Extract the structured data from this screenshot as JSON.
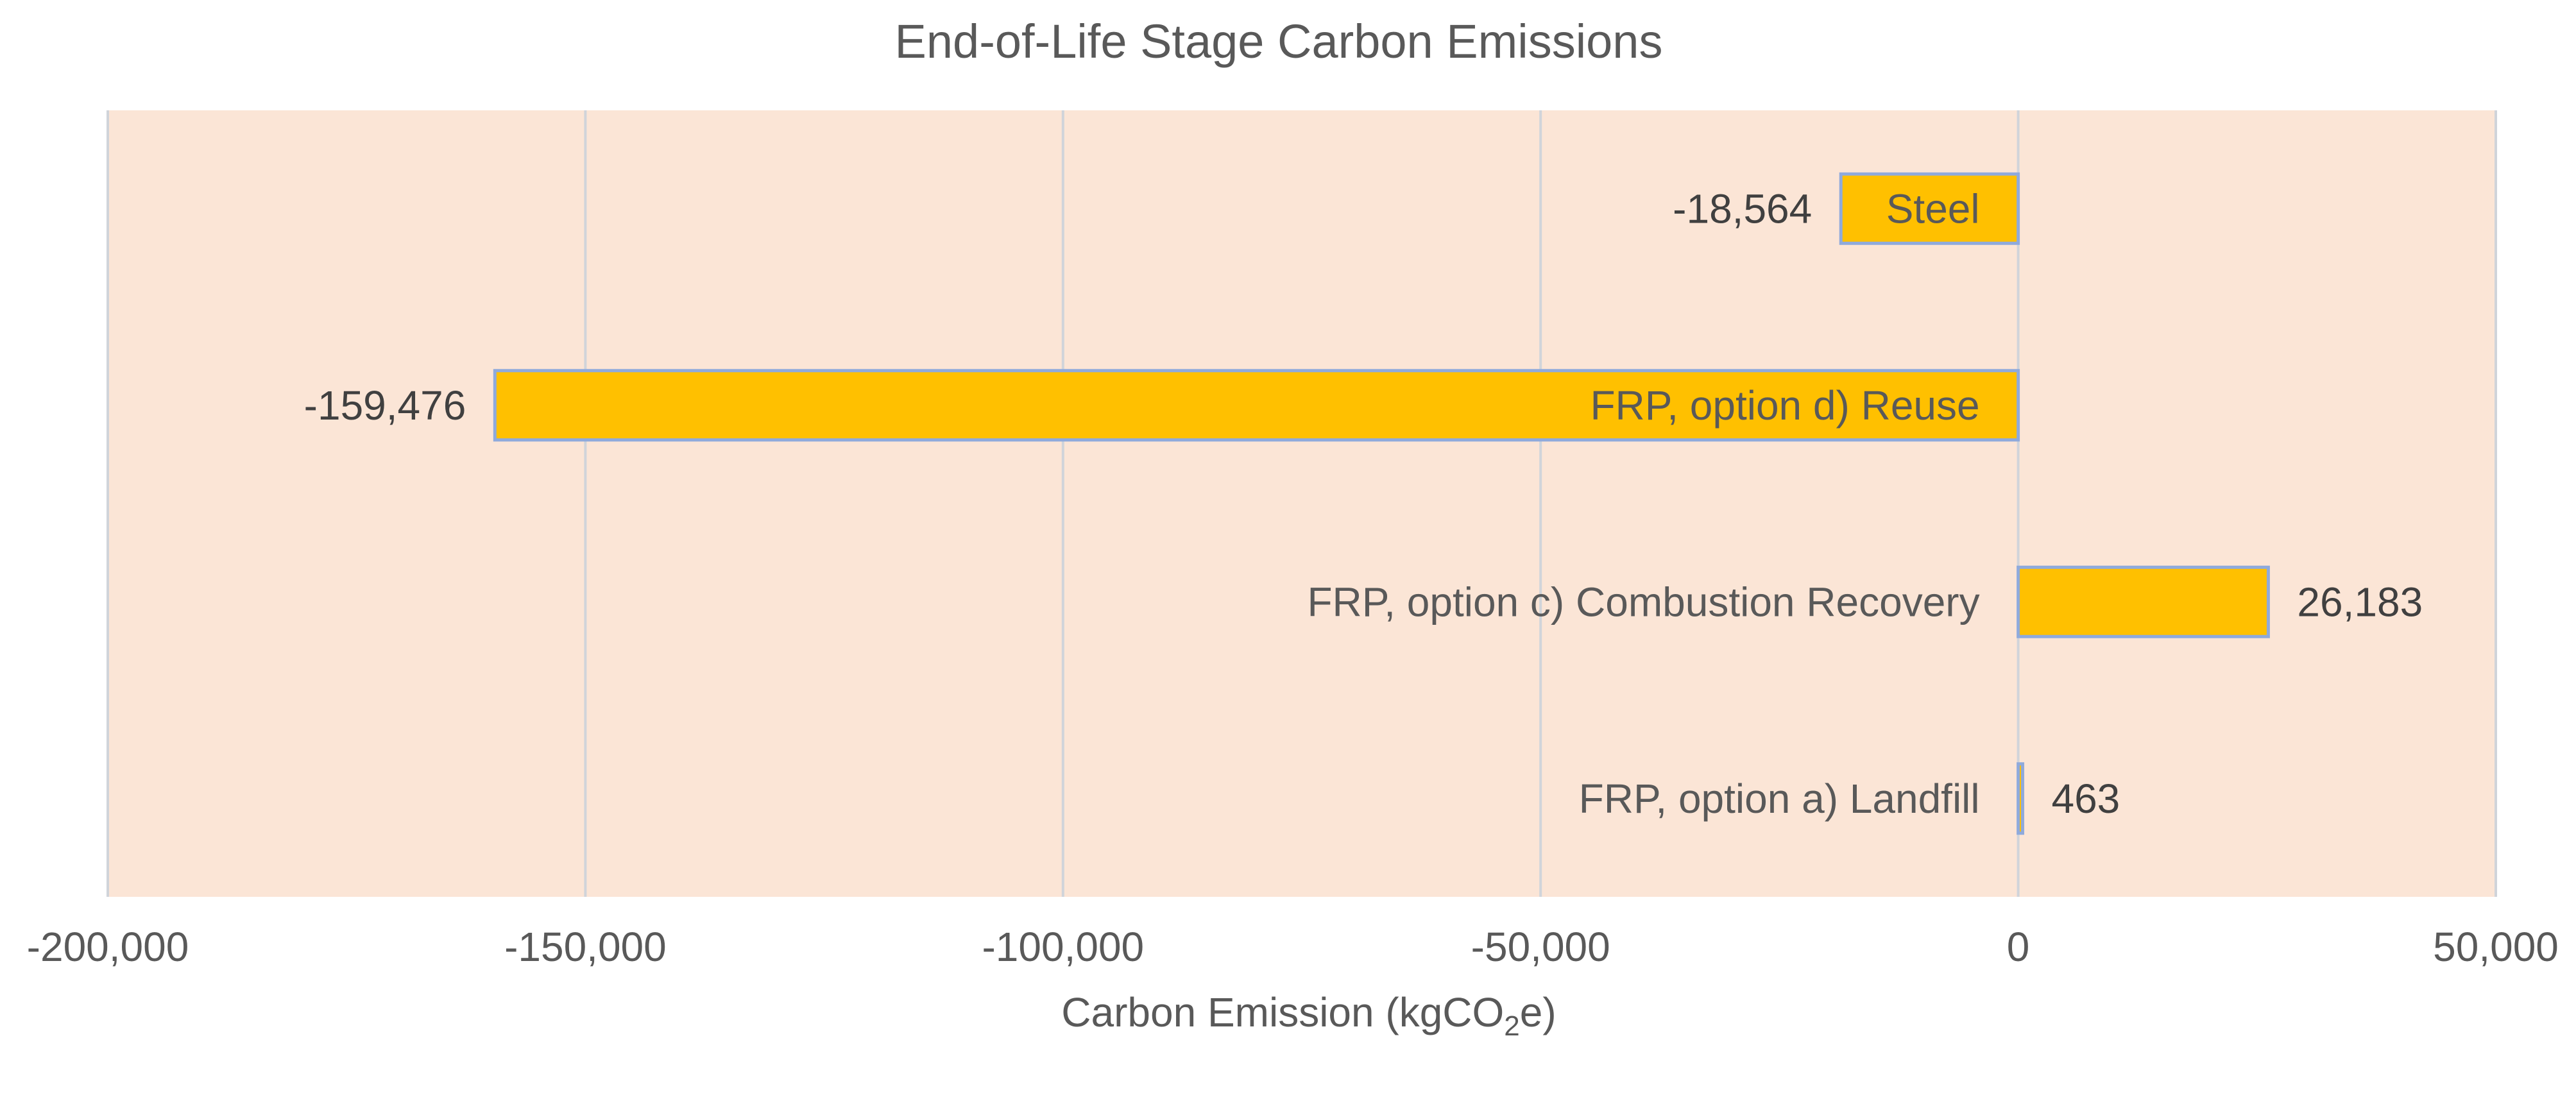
{
  "chart_data": {
    "type": "bar",
    "orientation": "horizontal",
    "title": "End-of-Life Stage Carbon Emissions",
    "xlabel": "Carbon Emission (kgCO₂e)",
    "xlabel_parts": {
      "before": "Carbon Emission (kgCO",
      "sub": "2",
      "after": "e)"
    },
    "ylabel": "",
    "xlim": [
      -200000,
      50000
    ],
    "x_ticks": [
      -200000,
      -150000,
      -100000,
      -50000,
      0,
      50000
    ],
    "x_tick_labels": [
      "-200,000",
      "-150,000",
      "-100,000",
      "-50,000",
      "0",
      "50,000"
    ],
    "grid": true,
    "legend": "none",
    "categories": [
      "Steel",
      "FRP, option d) Reuse",
      "FRP, option c) Combustion Recovery",
      "FRP, option a) Landfill"
    ],
    "values": [
      -18564,
      -159476,
      26183,
      463
    ],
    "value_labels": [
      "-18,564",
      "-159,476",
      "26,183",
      "463"
    ],
    "colors": {
      "bar_fill": "#FFC000",
      "bar_stroke": "#8FAADC",
      "plot_background": "#FBE5D6",
      "gridline": "#D0D4DA",
      "text": "#595959"
    }
  }
}
